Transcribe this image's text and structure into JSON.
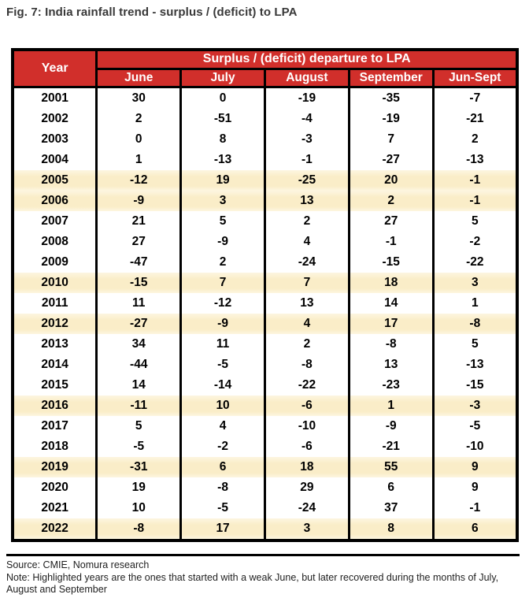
{
  "title": "Fig. 7: India rainfall trend - surplus / (deficit) to LPA",
  "table": {
    "year_header": "Year",
    "group_header": "Surplus / (deficit) departure to LPA",
    "month_headers": [
      "June",
      "July",
      "August",
      "September",
      "Jun-Sept"
    ],
    "rows": [
      {
        "year": "2001",
        "values": [
          "30",
          "0",
          "-19",
          "-35",
          "-7"
        ],
        "highlighted": false
      },
      {
        "year": "2002",
        "values": [
          "2",
          "-51",
          "-4",
          "-19",
          "-21"
        ],
        "highlighted": false
      },
      {
        "year": "2003",
        "values": [
          "0",
          "8",
          "-3",
          "7",
          "2"
        ],
        "highlighted": false
      },
      {
        "year": "2004",
        "values": [
          "1",
          "-13",
          "-1",
          "-27",
          "-13"
        ],
        "highlighted": false
      },
      {
        "year": "2005",
        "values": [
          "-12",
          "19",
          "-25",
          "20",
          "-1"
        ],
        "highlighted": true
      },
      {
        "year": "2006",
        "values": [
          "-9",
          "3",
          "13",
          "2",
          "-1"
        ],
        "highlighted": true
      },
      {
        "year": "2007",
        "values": [
          "21",
          "5",
          "2",
          "27",
          "5"
        ],
        "highlighted": false
      },
      {
        "year": "2008",
        "values": [
          "27",
          "-9",
          "4",
          "-1",
          "-2"
        ],
        "highlighted": false
      },
      {
        "year": "2009",
        "values": [
          "-47",
          "2",
          "-24",
          "-15",
          "-22"
        ],
        "highlighted": false
      },
      {
        "year": "2010",
        "values": [
          "-15",
          "7",
          "7",
          "18",
          "3"
        ],
        "highlighted": true
      },
      {
        "year": "2011",
        "values": [
          "11",
          "-12",
          "13",
          "14",
          "1"
        ],
        "highlighted": false
      },
      {
        "year": "2012",
        "values": [
          "-27",
          "-9",
          "4",
          "17",
          "-8"
        ],
        "highlighted": true
      },
      {
        "year": "2013",
        "values": [
          "34",
          "11",
          "2",
          "-8",
          "5"
        ],
        "highlighted": false
      },
      {
        "year": "2014",
        "values": [
          "-44",
          "-5",
          "-8",
          "13",
          "-13"
        ],
        "highlighted": false
      },
      {
        "year": "2015",
        "values": [
          "14",
          "-14",
          "-22",
          "-23",
          "-15"
        ],
        "highlighted": false
      },
      {
        "year": "2016",
        "values": [
          "-11",
          "10",
          "-6",
          "1",
          "-3"
        ],
        "highlighted": true
      },
      {
        "year": "2017",
        "values": [
          "5",
          "4",
          "-10",
          "-9",
          "-5"
        ],
        "highlighted": false
      },
      {
        "year": "2018",
        "values": [
          "-5",
          "-2",
          "-6",
          "-21",
          "-10"
        ],
        "highlighted": false
      },
      {
        "year": "2019",
        "values": [
          "-31",
          "6",
          "18",
          "55",
          "9"
        ],
        "highlighted": true
      },
      {
        "year": "2020",
        "values": [
          "19",
          "-8",
          "29",
          "6",
          "9"
        ],
        "highlighted": false
      },
      {
        "year": "2021",
        "values": [
          "10",
          "-5",
          "-24",
          "37",
          "-1"
        ],
        "highlighted": false
      },
      {
        "year": "2022",
        "values": [
          "-8",
          "17",
          "3",
          "8",
          "6"
        ],
        "highlighted": true
      }
    ]
  },
  "footer": {
    "source": "Source: CMIE, Nomura research",
    "note": "Note: Highlighted years are the ones that started with a weak June, but later recovered during the months of July, August and September"
  },
  "colors": {
    "header_red": "#D12F2B",
    "highlight_cream": "#FAEDC8",
    "border_black": "#000000"
  }
}
